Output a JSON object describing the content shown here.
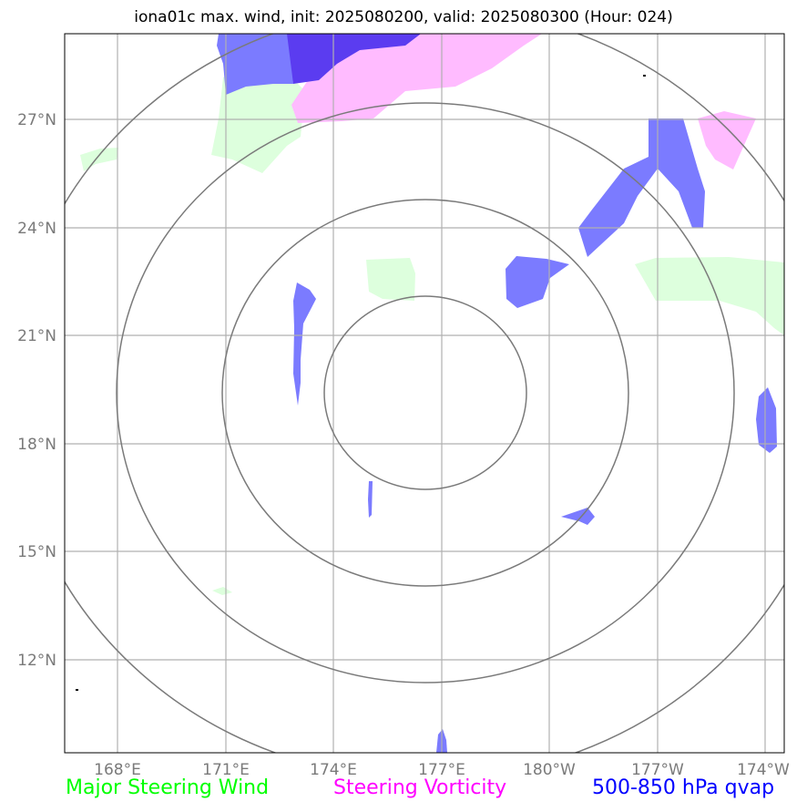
{
  "title": "iona01c max. wind, init: 2025080200, valid: 2025080300 (Hour: 024)",
  "lat_labels": [
    "27°N",
    "24°N",
    "21°N",
    "18°N",
    "15°N",
    "12°N"
  ],
  "lon_labels": [
    "168°E",
    "171°E",
    "174°E",
    "177°E",
    "180°W",
    "177°W",
    "174°W"
  ],
  "legend": [
    {
      "label": "Major Steering Wind",
      "color": "#00ff00"
    },
    {
      "label": "Steering Vorticity",
      "color": "#ff00ff"
    },
    {
      "label": "500-850 hPa qvap",
      "color": "#0000ff"
    }
  ],
  "colors": {
    "wind_fill": "#ddffdd",
    "vorticity_fill": "#ffbbff",
    "qvap_fill": "#7b7bff",
    "qvap_dark_fill": "#5b3cf0",
    "grid": "#b0b0b0",
    "range_ring": "#7a7a7a"
  }
}
